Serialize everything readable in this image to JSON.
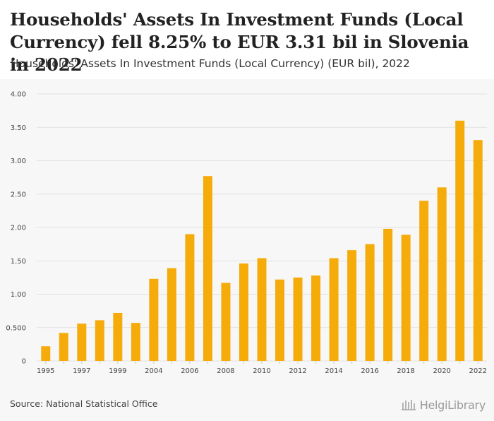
{
  "header": {
    "title": "Households' Assets In Investment Funds (Local Currency) fell 8.25% to EUR 3.31 bil in Slovenia in 2022",
    "subtitle": "Households' Assets In Investment Funds (Local Currency) (EUR bil), 2022"
  },
  "footer": {
    "source": "Source: National Statistical Office",
    "brand": "HelgiLibrary"
  },
  "colors": {
    "bar": "#f5ac0a",
    "grid": "#e2e2e2",
    "background": "#f7f7f7"
  },
  "chart_data": {
    "type": "bar",
    "title": "Households' Assets In Investment Funds (Local Currency) (EUR bil), 2022",
    "xlabel": "",
    "ylabel": "",
    "ylim": [
      0,
      4.0
    ],
    "yticks": [
      "0",
      "0.500",
      "1.00",
      "1.50",
      "2.00",
      "2.50",
      "3.00",
      "3.50",
      "4.00"
    ],
    "ytick_values": [
      0,
      0.5,
      1.0,
      1.5,
      2.0,
      2.5,
      3.0,
      3.5,
      4.0
    ],
    "categories": [
      "1995",
      "1996",
      "1997",
      "1998",
      "1999",
      "2000",
      "2004",
      "2005",
      "2006",
      "2007",
      "2008",
      "2009",
      "2010",
      "2011",
      "2012",
      "2013",
      "2014",
      "2015",
      "2016",
      "2017",
      "2018",
      "2019",
      "2020",
      "2021",
      "2022"
    ],
    "xtick_labels": [
      "1995",
      "",
      "1997",
      "",
      "1999",
      "",
      "2004",
      "",
      "2006",
      "",
      "2008",
      "",
      "2010",
      "",
      "2012",
      "",
      "2014",
      "",
      "2016",
      "",
      "2018",
      "",
      "2020",
      "",
      "2022"
    ],
    "values": [
      0.22,
      0.42,
      0.56,
      0.61,
      0.72,
      0.57,
      1.23,
      1.39,
      1.9,
      2.77,
      1.17,
      1.46,
      1.54,
      1.22,
      1.25,
      1.28,
      1.54,
      1.66,
      1.75,
      1.98,
      1.89,
      2.4,
      2.6,
      3.6,
      3.31
    ],
    "grid": true,
    "legend": "none"
  }
}
